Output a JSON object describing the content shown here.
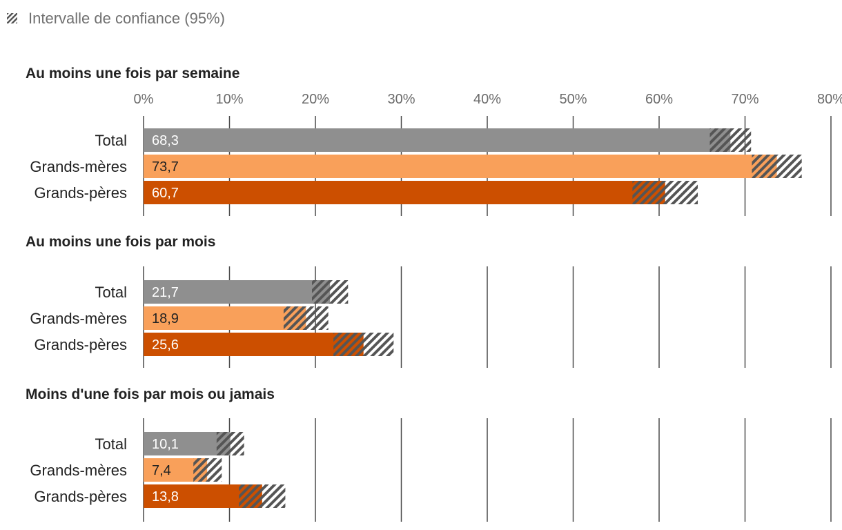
{
  "chart_data": {
    "type": "bar",
    "orientation": "horizontal",
    "legend": {
      "label": "Intervalle de confiance (95%)",
      "placement": "top-left"
    },
    "xlim": [
      0,
      80
    ],
    "ticks": [
      0,
      10,
      20,
      30,
      40,
      50,
      60,
      70,
      80
    ],
    "tick_labels": [
      "0%",
      "10%",
      "20%",
      "30%",
      "40%",
      "50%",
      "60%",
      "70%",
      "80%"
    ],
    "series_names": [
      "Total",
      "Grands-mères",
      "Grands-pères"
    ],
    "colors": {
      "Total": "#8f8f8f",
      "Grands-mères": "#f9a05a",
      "Grands-pères": "#cc4f00",
      "hatch": "#555555"
    },
    "value_text_colors": {
      "Total": "#ffffff",
      "Grands-mères": "#222222",
      "Grands-pères": "#ffffff"
    },
    "panels": [
      {
        "title": "Au moins une fois par semaine",
        "bars": [
          {
            "category": "Total",
            "value": 68.3,
            "label": "68,3",
            "ci_low": 65.9,
            "ci_high": 70.7
          },
          {
            "category": "Grands-mères",
            "value": 73.7,
            "label": "73,7",
            "ci_low": 70.8,
            "ci_high": 76.6
          },
          {
            "category": "Grands-pères",
            "value": 60.7,
            "label": "60,7",
            "ci_low": 56.9,
            "ci_high": 64.5
          }
        ]
      },
      {
        "title": "Au moins une fois par mois",
        "bars": [
          {
            "category": "Total",
            "value": 21.7,
            "label": "21,7",
            "ci_low": 19.6,
            "ci_high": 23.8
          },
          {
            "category": "Grands-mères",
            "value": 18.9,
            "label": "18,9",
            "ci_low": 16.3,
            "ci_high": 21.5
          },
          {
            "category": "Grands-pères",
            "value": 25.6,
            "label": "25,6",
            "ci_low": 22.1,
            "ci_high": 29.1
          }
        ]
      },
      {
        "title": "Moins d'une fois par mois ou jamais",
        "bars": [
          {
            "category": "Total",
            "value": 10.1,
            "label": "10,1",
            "ci_low": 8.5,
            "ci_high": 11.7
          },
          {
            "category": "Grands-mères",
            "value": 7.4,
            "label": "7,4",
            "ci_low": 5.8,
            "ci_high": 9.1
          },
          {
            "category": "Grands-pères",
            "value": 13.8,
            "label": "13,8",
            "ci_low": 11.1,
            "ci_high": 16.5
          }
        ]
      }
    ]
  }
}
